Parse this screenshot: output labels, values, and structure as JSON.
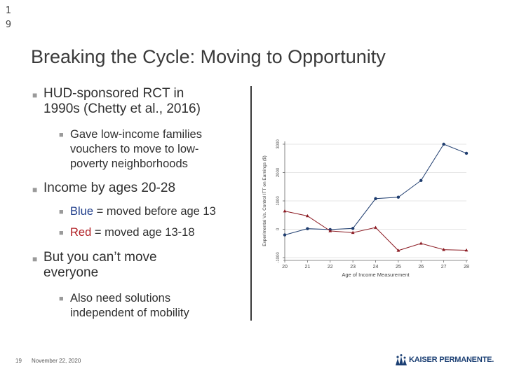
{
  "slide_number_top": [
    "1",
    "9"
  ],
  "title": "Breaking the Cycle: Moving to Opportunity",
  "bullets": {
    "b1_line1": "HUD-sponsored RCT in",
    "b1_line2": "1990s (Chetty et al., 2016)",
    "b1_sub_line1": "Gave low-income families",
    "b1_sub_line2": "vouchers to move to low-",
    "b1_sub_line3": "poverty neighborhoods",
    "b2": "Income by ages 20-28",
    "b2_sub1_colored": "Blue",
    "b2_sub1_rest": " = moved before age 13",
    "b2_sub2_colored": "Red",
    "b2_sub2_rest": " = moved age 13-18",
    "b3_line1": "But you can’t move",
    "b3_line2": "everyone",
    "b3_sub_line1": "Also need solutions",
    "b3_sub_line2": "independent of mobility"
  },
  "footer": {
    "page": "19",
    "date": "November 22, 2020",
    "logo": "KAISER PERMANENTE."
  },
  "colors": {
    "blue": "#1f3d6f",
    "red": "#8b1a22"
  },
  "chart_data": {
    "type": "line",
    "title": "",
    "xlabel": "Age of Income Measurement",
    "ylabel": "Experimental Vs. Control ITT on Earnings ($)",
    "x": [
      20,
      21,
      22,
      23,
      24,
      25,
      26,
      27,
      28
    ],
    "xticks": [
      "20",
      "21",
      "22",
      "23",
      "24",
      "25",
      "26",
      "27",
      "28"
    ],
    "yticks": [
      "-1000",
      "0",
      "1000",
      "2000",
      "3000"
    ],
    "ylim": [
      -1000,
      3000
    ],
    "grid": true,
    "series": [
      {
        "name": "Blue",
        "marker": "circle",
        "values": [
          -200,
          20,
          -10,
          30,
          1080,
          1130,
          1720,
          3000,
          2680
        ]
      },
      {
        "name": "Red",
        "marker": "triangle",
        "values": [
          640,
          470,
          -60,
          -120,
          60,
          -750,
          -500,
          -720,
          -740
        ]
      }
    ]
  }
}
